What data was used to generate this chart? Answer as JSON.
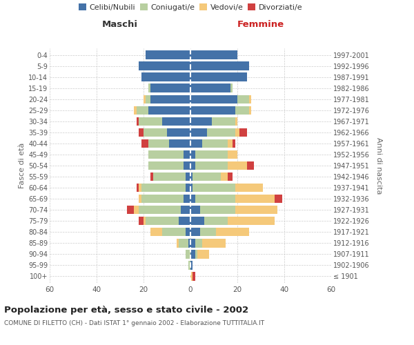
{
  "age_groups": [
    "100+",
    "95-99",
    "90-94",
    "85-89",
    "80-84",
    "75-79",
    "70-74",
    "65-69",
    "60-64",
    "55-59",
    "50-54",
    "45-49",
    "40-44",
    "35-39",
    "30-34",
    "25-29",
    "20-24",
    "15-19",
    "10-14",
    "5-9",
    "0-4"
  ],
  "birth_years": [
    "≤ 1901",
    "1902-1906",
    "1907-1911",
    "1912-1916",
    "1917-1921",
    "1922-1926",
    "1927-1931",
    "1932-1936",
    "1937-1941",
    "1942-1946",
    "1947-1951",
    "1952-1956",
    "1957-1961",
    "1962-1966",
    "1967-1971",
    "1972-1976",
    "1977-1981",
    "1982-1986",
    "1987-1991",
    "1992-1996",
    "1997-2001"
  ],
  "maschi": {
    "celibi": [
      0,
      0,
      0,
      1,
      2,
      5,
      4,
      3,
      2,
      2,
      3,
      3,
      9,
      10,
      12,
      18,
      17,
      17,
      21,
      22,
      19
    ],
    "coniugati": [
      0,
      1,
      2,
      4,
      10,
      14,
      18,
      18,
      19,
      14,
      15,
      15,
      9,
      10,
      10,
      5,
      2,
      1,
      0,
      0,
      0
    ],
    "vedovi": [
      0,
      0,
      0,
      1,
      5,
      1,
      2,
      1,
      1,
      0,
      0,
      0,
      0,
      0,
      0,
      1,
      1,
      0,
      0,
      0,
      0
    ],
    "divorziati": [
      0,
      0,
      0,
      0,
      0,
      2,
      3,
      0,
      1,
      1,
      0,
      0,
      3,
      2,
      1,
      0,
      0,
      0,
      0,
      0,
      0
    ]
  },
  "femmine": {
    "nubili": [
      0,
      1,
      2,
      2,
      4,
      6,
      4,
      2,
      1,
      1,
      2,
      2,
      5,
      7,
      9,
      19,
      20,
      17,
      24,
      25,
      20
    ],
    "coniugate": [
      0,
      0,
      1,
      3,
      7,
      10,
      15,
      17,
      18,
      12,
      14,
      14,
      11,
      12,
      10,
      6,
      5,
      1,
      0,
      0,
      0
    ],
    "vedove": [
      1,
      0,
      5,
      10,
      14,
      20,
      18,
      17,
      12,
      3,
      8,
      4,
      2,
      2,
      1,
      1,
      1,
      0,
      0,
      0,
      0
    ],
    "divorziate": [
      1,
      0,
      0,
      0,
      0,
      0,
      0,
      3,
      0,
      2,
      3,
      0,
      1,
      3,
      0,
      0,
      0,
      0,
      0,
      0,
      0
    ]
  },
  "colors": {
    "celibi": "#4472a8",
    "coniugati": "#b8cfa0",
    "vedovi": "#f5c97a",
    "divorziati": "#d04040"
  },
  "title": "Popolazione per età, sesso e stato civile - 2002",
  "subtitle": "COMUNE DI FILETTO (CH) - Dati ISTAT 1° gennaio 2002 - Elaborazione TUTTITALIA.IT",
  "xlabel_left": "Maschi",
  "xlabel_right": "Femmine",
  "ylabel_left": "Fasce di età",
  "ylabel_right": "Anni di nascita",
  "xlim": 60,
  "background_color": "#ffffff",
  "grid_color": "#cccccc"
}
